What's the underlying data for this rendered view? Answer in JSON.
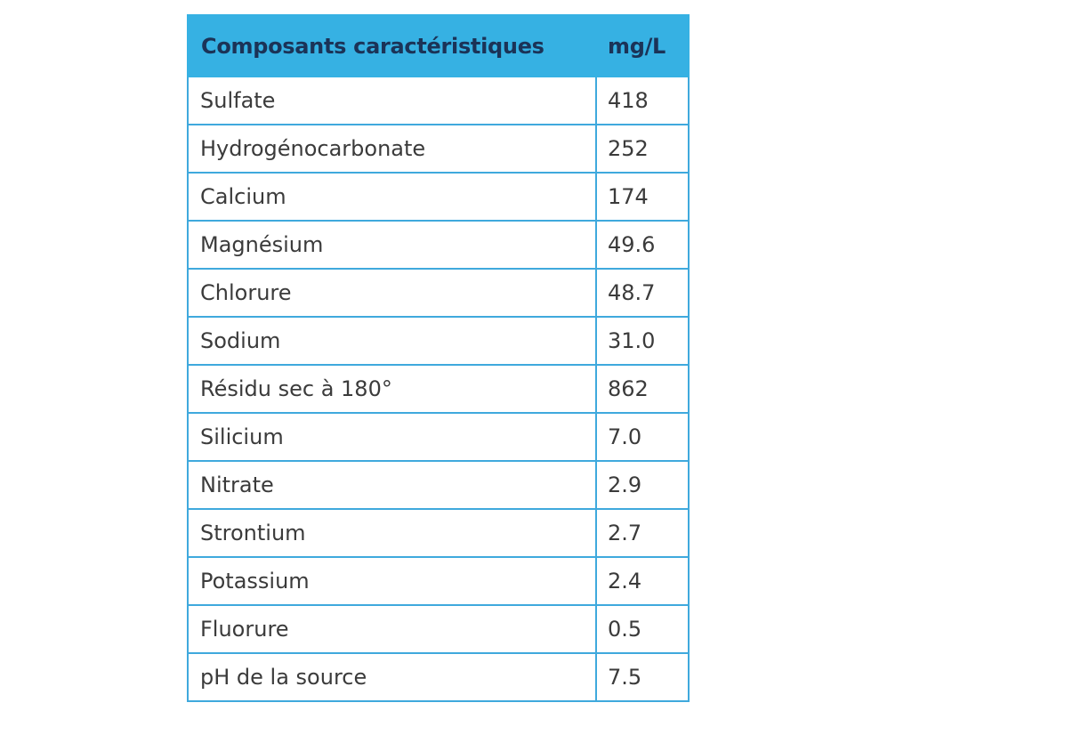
{
  "table": {
    "headers": [
      "Composants caractéristiques",
      "mg/L"
    ],
    "rows": [
      [
        "Sulfate",
        "418"
      ],
      [
        "Hydrogénocarbonate",
        "252"
      ],
      [
        "Calcium",
        "174"
      ],
      [
        "Magnésium",
        "49.6"
      ],
      [
        "Chlorure",
        "48.7"
      ],
      [
        "Sodium",
        "31.0"
      ],
      [
        "Résidu sec à 180°",
        "862"
      ],
      [
        "Silicium",
        "7.0"
      ],
      [
        "Nitrate",
        "2.9"
      ],
      [
        "Strontium",
        "2.7"
      ],
      [
        "Potassium",
        "2.4"
      ],
      [
        "Fluorure",
        "0.5"
      ],
      [
        "pH de la source",
        "7.5"
      ]
    ]
  }
}
